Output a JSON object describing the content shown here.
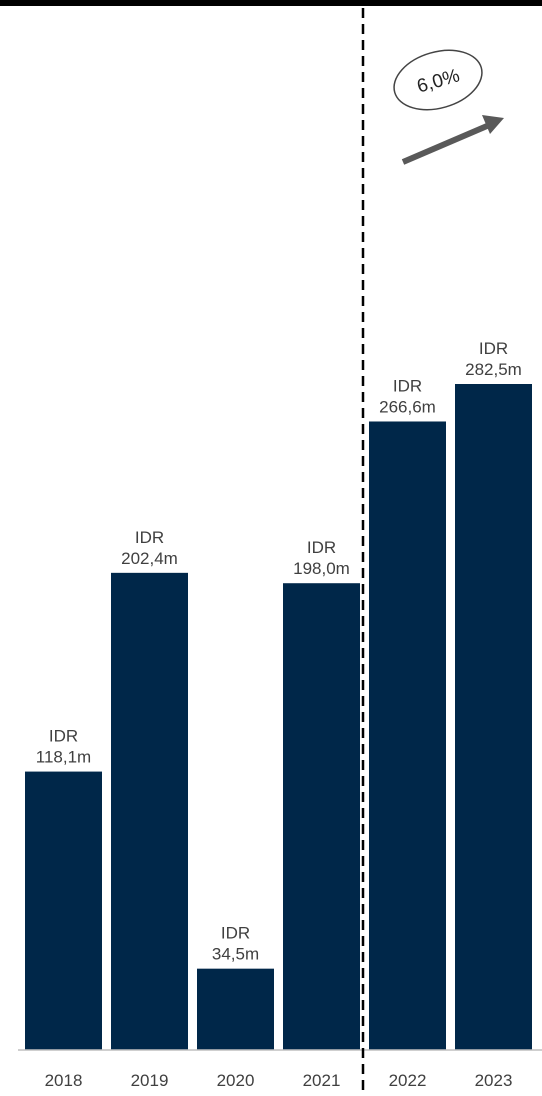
{
  "chart_data": {
    "type": "bar",
    "categories": [
      "2018",
      "2019",
      "2020",
      "2021",
      "2022",
      "2023"
    ],
    "values": [
      118.1,
      202.4,
      34.5,
      198.0,
      266.6,
      282.5
    ],
    "labels": [
      [
        "IDR",
        "118,1m"
      ],
      [
        "IDR",
        "202,4m"
      ],
      [
        "IDR",
        "34,5m"
      ],
      [
        "IDR",
        "198,0m"
      ],
      [
        "IDR",
        "266,6m"
      ],
      [
        "IDR",
        "282,5m"
      ]
    ],
    "ylim": [
      0,
      282.5
    ],
    "grid": false,
    "forecast_divider_after": "2021",
    "annotation": "6,0%"
  },
  "colors": {
    "bar": "#002749",
    "text": "#404040",
    "axis": "#bfbfbf",
    "arrow": "#595959",
    "divider": "#000000"
  },
  "icons": {
    "trend": "up-right-arrow-icon"
  }
}
